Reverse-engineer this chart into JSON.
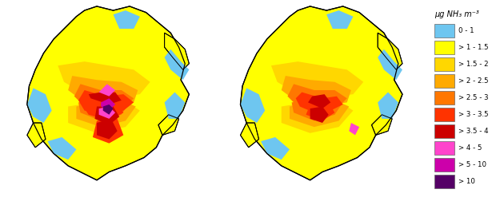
{
  "title": "",
  "background_color": "#ffffff",
  "legend_title": "μg NH₃ m⁻³",
  "legend_entries": [
    {
      "label": "0 - 1",
      "color": "#6ec6f0"
    },
    {
      "label": "> 1 - 1.5",
      "color": "#ffff00"
    },
    {
      "label": "> 1.5 - 2",
      "color": "#ffd700"
    },
    {
      "label": "> 2 - 2.5",
      "color": "#ffaa00"
    },
    {
      "label": "> 2.5 - 3",
      "color": "#ff7700"
    },
    {
      "label": "> 3 - 3.5",
      "color": "#ff3300"
    },
    {
      "label": "> 3.5 - 4",
      "color": "#cc0000"
    },
    {
      "label": "> 4 - 5",
      "color": "#ff44cc"
    },
    {
      "label": "> 5 - 10",
      "color": "#cc00aa"
    },
    {
      "label": "> 10",
      "color": "#550066"
    }
  ],
  "outline_color": "#000000",
  "c_blue": "#6ec6f0",
  "c_yellow": "#ffff00",
  "c_gold": "#ffd700",
  "c_orange_lt": "#ffaa00",
  "c_orange": "#ff7700",
  "c_red": "#ff3300",
  "c_dark_red": "#cc0000",
  "c_pink": "#ff44cc",
  "c_purple": "#cc00aa",
  "c_dark_purple": "#550066",
  "fig_width": 6.2,
  "fig_height": 2.67,
  "dpi": 100
}
